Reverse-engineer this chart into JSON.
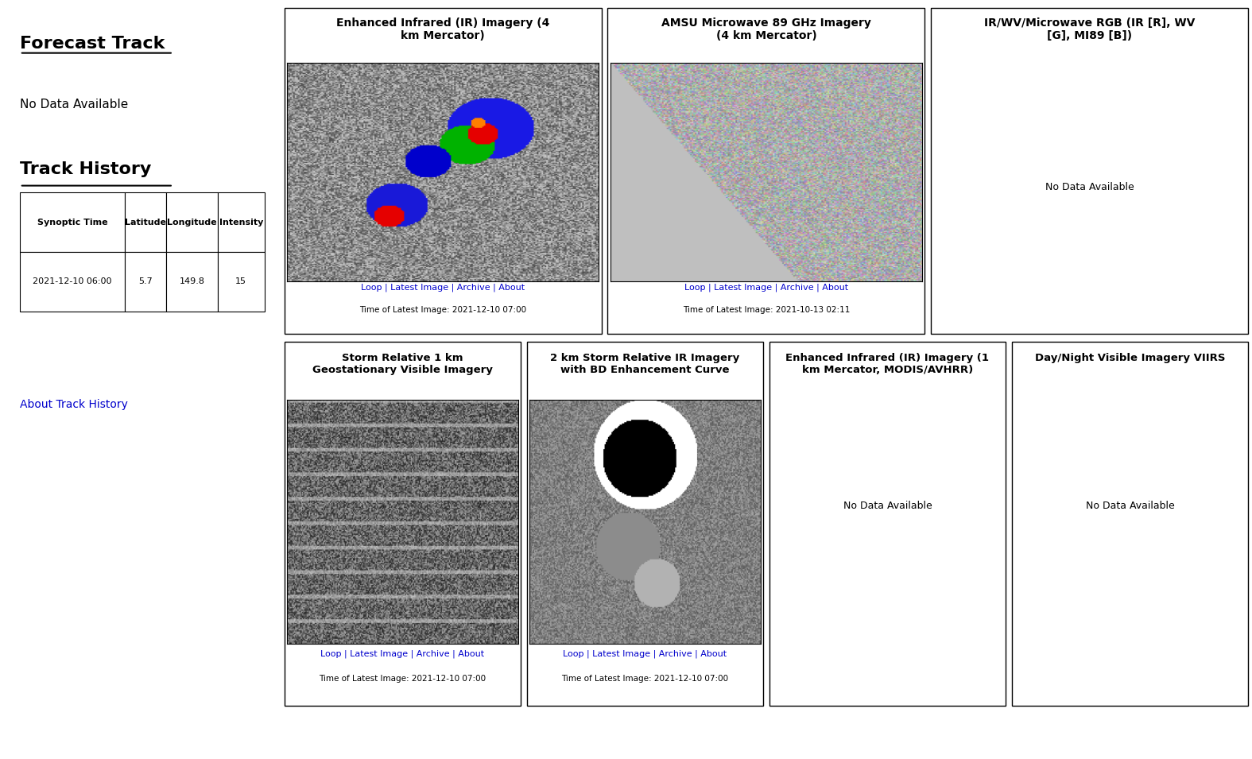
{
  "bg_color": "#ffffff",
  "panel_border_color": "#000000",
  "link_color": "#0000cc",
  "text_color": "#000000",
  "left_panel": {
    "forecast_track_title": "Forecast Track",
    "forecast_track_text": "No Data Available",
    "track_history_title": "Track History",
    "table_headers": [
      "Synoptic Time",
      "Latitude",
      "Longitude",
      "Intensity"
    ],
    "table_row": [
      "2021-12-10 06:00",
      "5.7",
      "149.8",
      "15"
    ],
    "about_text": "About Track History"
  },
  "top_panels": [
    {
      "title": "Enhanced Infrared (IR) Imagery (4\nkm Mercator)",
      "has_image": true,
      "image_type": "IR",
      "links": "Loop | Latest Image | Archive | About",
      "time_text": "Time of Latest Image: 2021-12-10 07:00"
    },
    {
      "title": "AMSU Microwave 89 GHz Imagery\n(4 km Mercator)",
      "has_image": true,
      "image_type": "microwave",
      "links": "Loop | Latest Image | Archive | About",
      "time_text": "Time of Latest Image: 2021-10-13 02:11"
    },
    {
      "title": "IR/WV/Microwave RGB (IR [R], WV\n[G], MI89 [B])",
      "has_image": false,
      "no_data_text": "No Data Available",
      "links": "",
      "time_text": ""
    }
  ],
  "bottom_panels": [
    {
      "title": "Storm Relative 1 km\nGeostationary Visible Imagery",
      "has_image": true,
      "image_type": "visible",
      "links": "Loop | Latest Image | Archive | About",
      "time_text": "Time of Latest Image: 2021-12-10 07:00"
    },
    {
      "title": "2 km Storm Relative IR Imagery\nwith BD Enhancement Curve",
      "has_image": true,
      "image_type": "BD",
      "links": "Loop | Latest Image | Archive | About",
      "time_text": "Time of Latest Image: 2021-12-10 07:00"
    },
    {
      "title": "Enhanced Infrared (IR) Imagery (1\nkm Mercator, MODIS/AVHRR)",
      "has_image": false,
      "no_data_text": "No Data Available",
      "links": "",
      "time_text": ""
    },
    {
      "title": "Day/Night Visible Imagery VIIRS",
      "has_image": false,
      "no_data_text": "No Data Available",
      "links": "",
      "time_text": ""
    }
  ]
}
